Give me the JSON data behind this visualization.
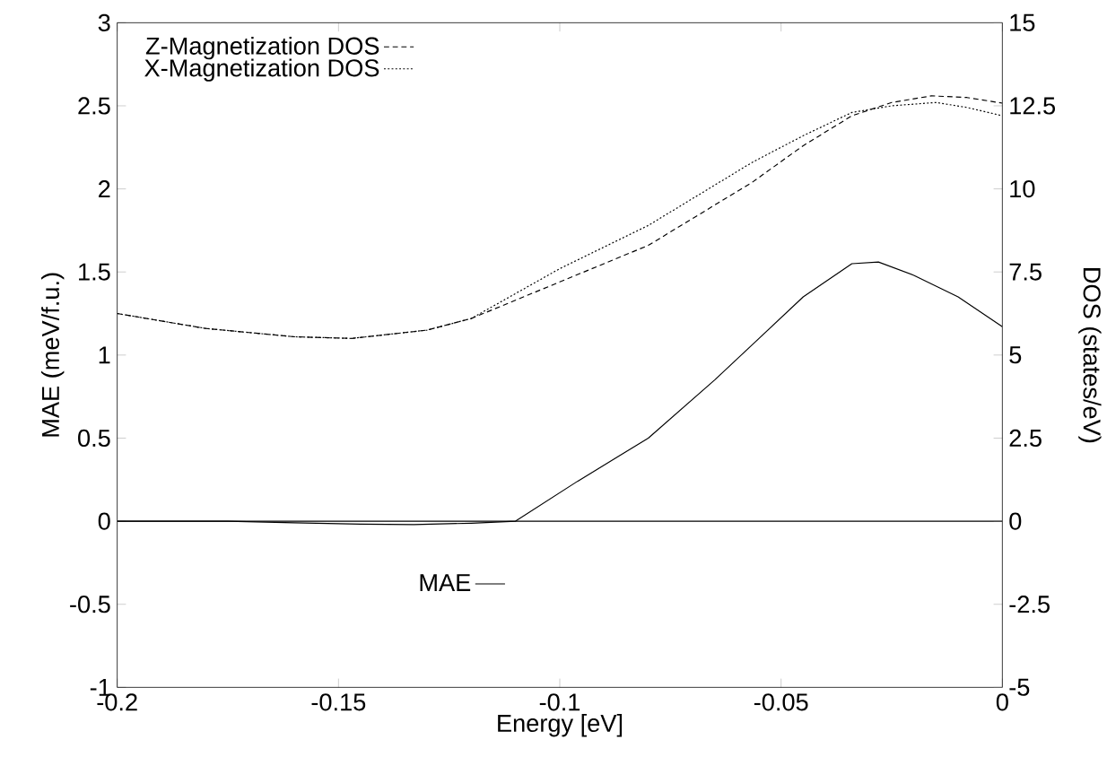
{
  "chart_data": {
    "type": "line",
    "xlabel": "Energy [eV]",
    "ylabel": "MAE (meV/f.u.)",
    "y2label": "DOS (states/eV)",
    "xlim": [
      -0.2,
      0
    ],
    "xticks": [
      -0.2,
      -0.15,
      -0.1,
      -0.05,
      0
    ],
    "ylim": [
      -1,
      3
    ],
    "yticks": [
      -1,
      -0.5,
      0,
      0.5,
      1,
      1.5,
      2,
      2.5,
      3
    ],
    "y2lim": [
      -5,
      15
    ],
    "y2ticks": [
      -5,
      -2.5,
      0,
      2.5,
      5,
      7.5,
      10,
      12.5,
      15
    ],
    "legend": "top left",
    "grid": false,
    "marker": "none",
    "ref_lines": [
      {
        "axis": "y",
        "value": 0,
        "color": "#000000",
        "line_style": "solid"
      }
    ],
    "series": [
      {
        "name": "Z-Magnetization DOS",
        "color": "#000000",
        "line_style": "dashed",
        "axis": "y2",
        "x": [
          -0.2,
          -0.18,
          -0.16,
          -0.147,
          -0.13,
          -0.12,
          -0.1,
          -0.08,
          -0.0565,
          -0.045,
          -0.034,
          -0.025,
          -0.016,
          -0.008,
          0
        ],
        "values": [
          6.25,
          5.8,
          5.55,
          5.5,
          5.75,
          6.1,
          7.2,
          8.3,
          10.2,
          11.3,
          12.2,
          12.6,
          12.8,
          12.75,
          12.58
        ]
      },
      {
        "name": "X-Magnetization DOS",
        "color": "#000000",
        "line_style": "dotted",
        "axis": "y2",
        "x": [
          -0.2,
          -0.18,
          -0.16,
          -0.147,
          -0.13,
          -0.12,
          -0.1,
          -0.08,
          -0.0565,
          -0.045,
          -0.034,
          -0.025,
          -0.015,
          -0.008,
          0
        ],
        "values": [
          6.25,
          5.8,
          5.55,
          5.5,
          5.75,
          6.1,
          7.6,
          8.9,
          10.8,
          11.6,
          12.3,
          12.5,
          12.6,
          12.45,
          12.2
        ]
      },
      {
        "name": "MAE",
        "color": "#000000",
        "line_style": "solid",
        "axis": "y",
        "x": [
          -0.2,
          -0.175,
          -0.16,
          -0.145,
          -0.133,
          -0.12,
          -0.11,
          -0.096,
          -0.08,
          -0.065,
          -0.055,
          -0.045,
          -0.034,
          -0.028,
          -0.02,
          -0.01,
          0
        ],
        "values": [
          0,
          0,
          -0.01,
          -0.018,
          -0.02,
          -0.012,
          0,
          0.24,
          0.5,
          0.85,
          1.1,
          1.35,
          1.55,
          1.56,
          1.48,
          1.35,
          1.17
        ]
      }
    ]
  }
}
